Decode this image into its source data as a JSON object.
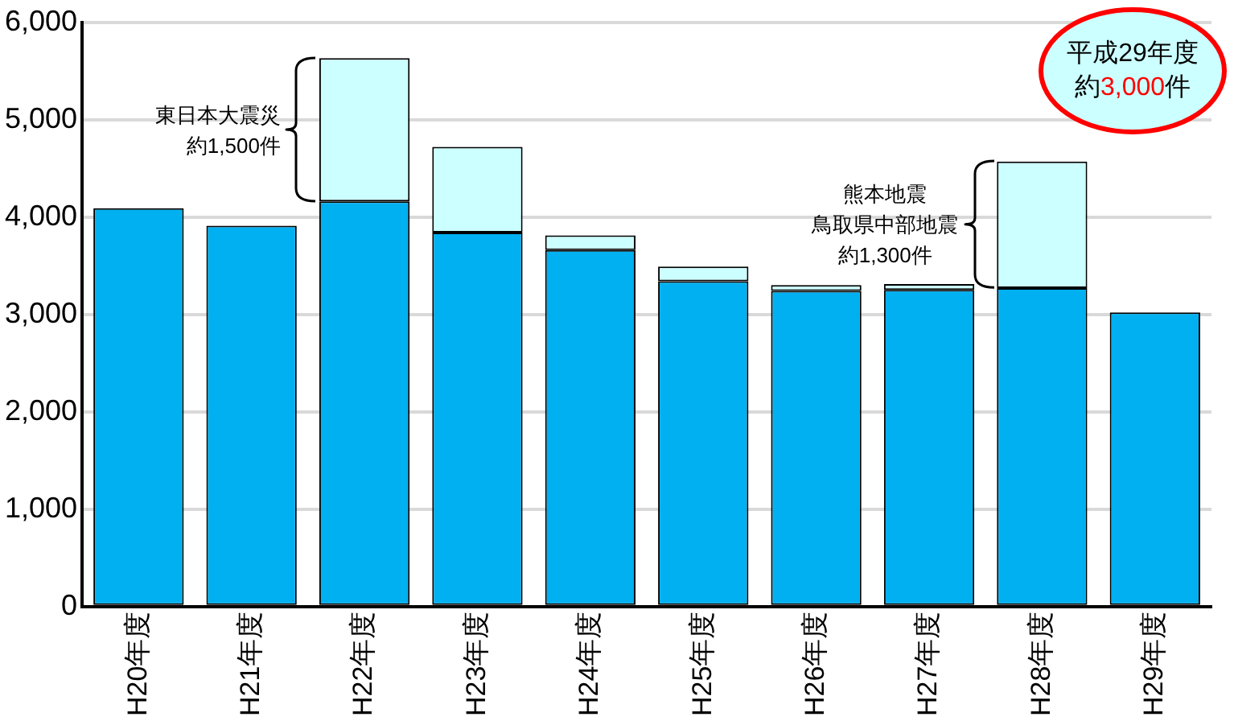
{
  "chart_data": {
    "type": "bar",
    "stacked": true,
    "categories": [
      "H20年度",
      "H21年度",
      "H22年度",
      "H23年度",
      "H24年度",
      "H25年度",
      "H26年度",
      "H27年度",
      "H28年度",
      "H29年度"
    ],
    "series": [
      {
        "color": "#00b0f0",
        "values": [
          4090,
          3910,
          4160,
          3840,
          3660,
          3340,
          3240,
          3250,
          3270,
          3020
        ]
      },
      {
        "color": "#ccffff",
        "values": [
          null,
          null,
          1470,
          880,
          150,
          150,
          60,
          60,
          1300,
          null
        ]
      }
    ],
    "ylim": [
      0,
      6000
    ],
    "yticks": [
      {
        "value": 0,
        "label": "0"
      },
      {
        "value": 1000,
        "label": "1,000"
      },
      {
        "value": 2000,
        "label": "2,000"
      },
      {
        "value": 3000,
        "label": "3,000"
      },
      {
        "value": 4000,
        "label": "4,000"
      },
      {
        "value": 5000,
        "label": "5,000"
      },
      {
        "value": 6000,
        "label": "6,000"
      }
    ],
    "grid": "y",
    "legend": false,
    "annotations": [
      "東日本大震災",
      "約1,500件",
      "熊本地震",
      "鳥取県中部地震",
      "約1,300件",
      "平成29年度",
      "約3,000件"
    ]
  }
}
